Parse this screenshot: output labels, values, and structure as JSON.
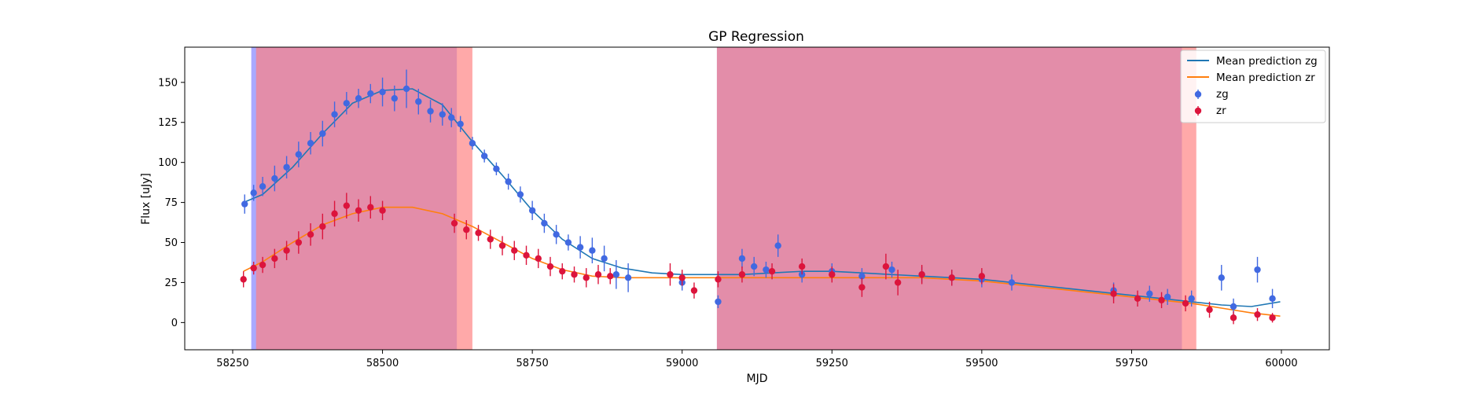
{
  "chart_data": {
    "type": "scatter",
    "title": "GP Regression",
    "xlabel": "MJD",
    "ylabel": "Flux [uJy]",
    "xlim": [
      58170,
      60080
    ],
    "ylim": [
      -17,
      172
    ],
    "x_ticks": [
      58250,
      58500,
      58750,
      59000,
      59250,
      59500,
      59750,
      60000
    ],
    "y_ticks": [
      0,
      25,
      50,
      75,
      100,
      125,
      150
    ],
    "grid": false,
    "legend_position": "top-right",
    "colors": {
      "zg": "#4169e1",
      "zr": "#dc143c",
      "mean_zg": "#1f77b4",
      "mean_zr": "#ff7f0e",
      "band_blue": "#8080ff",
      "band_red": "#ff8080",
      "band_overlap": "#c46ca5"
    },
    "bands": [
      {
        "band": "zg",
        "x0": 58281,
        "x1": 58624
      },
      {
        "band": "zr",
        "x0": 58289,
        "x1": 58650
      },
      {
        "band": "zg",
        "x0": 59058,
        "x1": 59834
      },
      {
        "band": "zr",
        "x0": 59058,
        "x1": 59858
      }
    ],
    "series": [
      {
        "name": "Mean prediction zg",
        "kind": "line",
        "color": "#1f77b4",
        "x": [
          58268,
          58300,
          58350,
          58400,
          58450,
          58500,
          58550,
          58600,
          58650,
          58700,
          58750,
          58800,
          58850,
          58900,
          58950,
          59000,
          59050,
          59100,
          59150,
          59200,
          59250,
          59300,
          59350,
          59400,
          59450,
          59500,
          59550,
          59600,
          59650,
          59700,
          59750,
          59800,
          59850,
          59900,
          59950,
          59998
        ],
        "y": [
          75,
          80,
          97,
          118,
          137,
          145,
          146,
          136,
          113,
          92,
          70,
          52,
          40,
          34,
          31,
          30,
          30,
          30,
          31,
          32,
          32,
          31,
          30,
          29,
          28,
          27,
          25,
          23,
          21,
          19,
          17,
          15,
          13,
          11,
          10,
          13
        ]
      },
      {
        "name": "Mean prediction zr",
        "kind": "line",
        "color": "#ff7f0e",
        "x": [
          58268,
          58300,
          58350,
          58400,
          58450,
          58500,
          58550,
          58600,
          58650,
          58700,
          58750,
          58800,
          58850,
          58900,
          58950,
          59000,
          59050,
          59100,
          59150,
          59200,
          59250,
          59300,
          59350,
          59400,
          59450,
          59500,
          59550,
          59600,
          59650,
          59700,
          59750,
          59800,
          59850,
          59900,
          59950,
          59998
        ],
        "y": [
          32,
          38,
          50,
          61,
          68,
          72,
          72,
          68,
          60,
          50,
          40,
          33,
          29,
          28,
          28,
          28,
          28,
          28,
          28,
          28,
          28,
          28,
          28,
          28,
          27,
          26,
          24,
          22,
          20,
          18,
          16,
          14,
          12,
          9,
          6,
          4
        ]
      },
      {
        "name": "zg",
        "kind": "scatter",
        "color": "#4169e1",
        "x": [
          58270,
          58285,
          58300,
          58320,
          58340,
          58360,
          58380,
          58400,
          58420,
          58440,
          58460,
          58480,
          58500,
          58520,
          58540,
          58560,
          58580,
          58600,
          58615,
          58630,
          58650,
          58670,
          58690,
          58710,
          58730,
          58750,
          58770,
          58790,
          58810,
          58830,
          58850,
          58870,
          58890,
          58910,
          59000,
          59060,
          59100,
          59120,
          59140,
          59160,
          59200,
          59250,
          59300,
          59350,
          59400,
          59450,
          59500,
          59550,
          59720,
          59780,
          59810,
          59850,
          59900,
          59920,
          59960,
          59985
        ],
        "y": [
          74,
          81,
          85,
          90,
          97,
          105,
          112,
          118,
          130,
          137,
          140,
          143,
          144,
          140,
          146,
          138,
          132,
          130,
          128,
          124,
          112,
          104,
          96,
          88,
          80,
          70,
          62,
          55,
          50,
          47,
          45,
          40,
          30,
          28,
          25,
          13,
          40,
          35,
          33,
          48,
          30,
          32,
          29,
          33,
          30,
          28,
          27,
          25,
          20,
          18,
          16,
          15,
          28,
          10,
          33,
          15
        ],
        "errors": [
          6,
          5,
          6,
          8,
          7,
          8,
          7,
          8,
          8,
          7,
          6,
          6,
          9,
          8,
          12,
          8,
          7,
          7,
          6,
          5,
          4,
          4,
          4,
          5,
          5,
          6,
          6,
          6,
          5,
          7,
          8,
          8,
          9,
          9,
          5,
          4,
          6,
          6,
          5,
          7,
          5,
          5,
          5,
          5,
          5,
          5,
          5,
          5,
          5,
          5,
          5,
          5,
          8,
          5,
          8,
          6
        ]
      },
      {
        "name": "zr",
        "kind": "scatter",
        "color": "#dc143c",
        "x": [
          58268,
          58285,
          58300,
          58320,
          58340,
          58360,
          58380,
          58400,
          58420,
          58440,
          58460,
          58480,
          58500,
          58620,
          58640,
          58660,
          58680,
          58700,
          58720,
          58740,
          58760,
          58780,
          58800,
          58820,
          58840,
          58860,
          58880,
          58980,
          59000,
          59020,
          59060,
          59100,
          59150,
          59200,
          59250,
          59300,
          59340,
          59360,
          59400,
          59450,
          59500,
          59720,
          59760,
          59800,
          59840,
          59880,
          59920,
          59960,
          59985
        ],
        "y": [
          27,
          34,
          36,
          40,
          45,
          50,
          55,
          60,
          68,
          73,
          70,
          72,
          70,
          62,
          58,
          56,
          52,
          48,
          45,
          42,
          40,
          35,
          32,
          30,
          28,
          30,
          29,
          30,
          28,
          20,
          27,
          30,
          32,
          35,
          30,
          22,
          35,
          25,
          30,
          28,
          29,
          18,
          15,
          14,
          12,
          8,
          3,
          5,
          3
        ],
        "errors": [
          5,
          4,
          5,
          6,
          6,
          7,
          7,
          8,
          8,
          8,
          7,
          7,
          6,
          6,
          6,
          5,
          6,
          6,
          6,
          6,
          6,
          6,
          5,
          5,
          6,
          6,
          5,
          7,
          5,
          5,
          5,
          5,
          5,
          5,
          5,
          6,
          8,
          8,
          6,
          5,
          5,
          6,
          5,
          5,
          5,
          5,
          4,
          4,
          3
        ]
      }
    ]
  }
}
